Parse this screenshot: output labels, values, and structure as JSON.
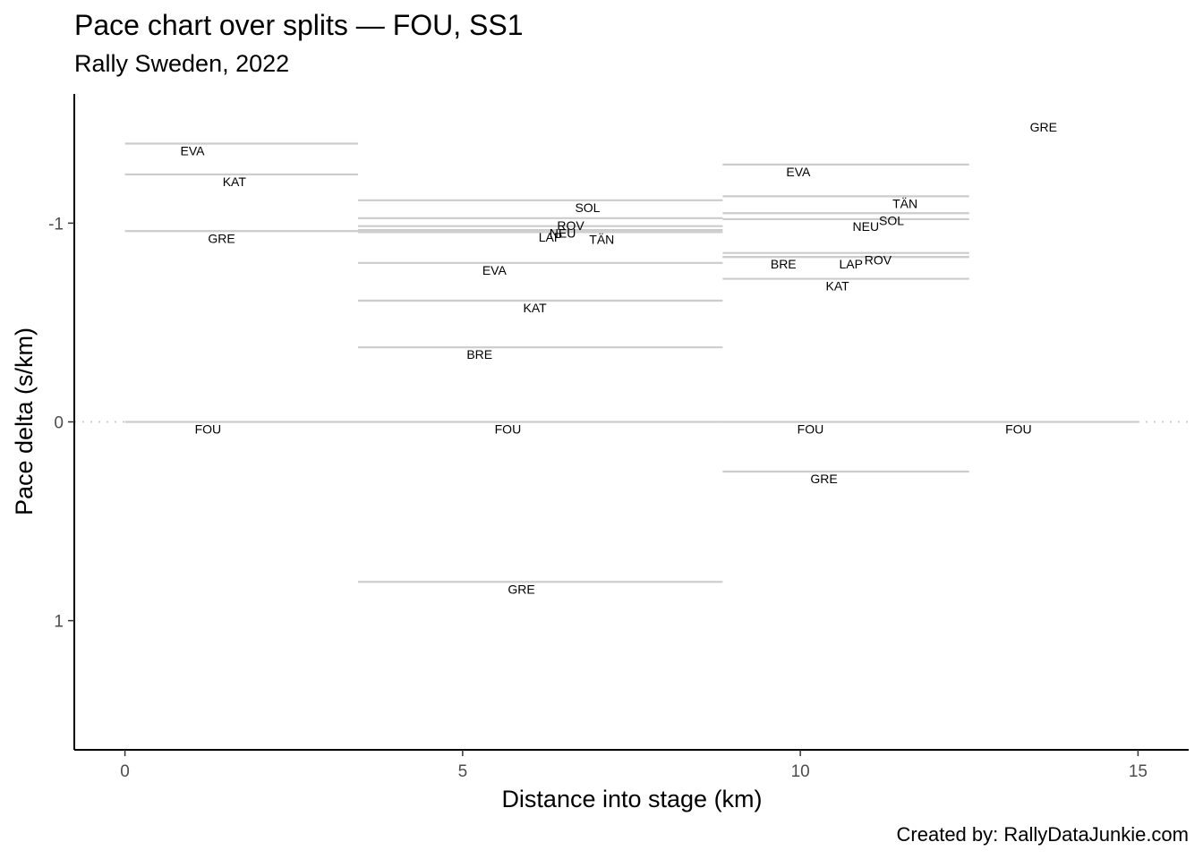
{
  "chart_data": {
    "type": "line",
    "title": "Pace chart over splits — FOU, SS1",
    "subtitle": "Rally Sweden, 2022",
    "caption": "Created by: RallyDataJunkie.com",
    "xlabel": "Distance into stage (km)",
    "ylabel": "Pace delta (s/km)",
    "xlim": [
      -0.75,
      15.75
    ],
    "ylim": [
      1.65,
      -1.65
    ],
    "y_reversed": true,
    "x_ticks": [
      0,
      5,
      10,
      15
    ],
    "y_ticks": [
      -1,
      0,
      1
    ],
    "y_tick_labels": [
      "-1",
      "0",
      "1"
    ],
    "reference_line": 0,
    "grid": false,
    "line_color": "#cccccc",
    "splits": [
      {
        "start": 0,
        "end": 3.45
      },
      {
        "start": 3.45,
        "end": 8.85
      },
      {
        "start": 8.85,
        "end": 12.5
      },
      {
        "start": 12.5,
        "end": 15.0
      }
    ],
    "segments": [
      {
        "driver": "EVA",
        "split": 0,
        "pace": -1.4,
        "label_x": 1.0
      },
      {
        "driver": "KAT",
        "split": 0,
        "pace": -1.245,
        "label_x": 1.62
      },
      {
        "driver": "GRE",
        "split": 0,
        "pace": -0.96,
        "label_x": 1.43
      },
      {
        "driver": "FOU",
        "split": 0,
        "pace": 0.0,
        "label_x": 1.23
      },
      {
        "driver": "SOL",
        "split": 1,
        "pace": -1.115,
        "label_x": 6.85
      },
      {
        "driver": "ROV",
        "split": 1,
        "pace": -1.025,
        "label_x": 6.6
      },
      {
        "driver": "NEU",
        "split": 1,
        "pace": -0.985,
        "label_x": 6.48
      },
      {
        "driver": "LAP",
        "split": 1,
        "pace": -0.965,
        "label_x": 6.3
      },
      {
        "driver": "TÄN",
        "split": 1,
        "pace": -0.955,
        "label_x": 7.06
      },
      {
        "driver": "EVA",
        "split": 1,
        "pace": -0.8,
        "label_x": 5.47
      },
      {
        "driver": "KAT",
        "split": 1,
        "pace": -0.61,
        "label_x": 6.07
      },
      {
        "driver": "BRE",
        "split": 1,
        "pace": -0.375,
        "label_x": 5.25
      },
      {
        "driver": "FOU",
        "split": 1,
        "pace": 0.0,
        "label_x": 5.67
      },
      {
        "driver": "GRE",
        "split": 1,
        "pace": 0.805,
        "label_x": 5.87
      },
      {
        "driver": "EVA",
        "split": 2,
        "pace": -1.295,
        "label_x": 9.97
      },
      {
        "driver": "TÄN",
        "split": 2,
        "pace": -1.135,
        "label_x": 11.55
      },
      {
        "driver": "SOL",
        "split": 2,
        "pace": -1.05,
        "label_x": 11.35
      },
      {
        "driver": "NEU",
        "split": 2,
        "pace": -1.02,
        "label_x": 10.97
      },
      {
        "driver": "ROV",
        "split": 2,
        "pace": -0.85,
        "label_x": 11.15
      },
      {
        "driver": "BRE",
        "split": 2,
        "pace": -0.83,
        "label_x": 9.75
      },
      {
        "driver": "LAP",
        "split": 2,
        "pace": -0.83,
        "label_x": 10.75
      },
      {
        "driver": "KAT",
        "split": 2,
        "pace": -0.72,
        "label_x": 10.55
      },
      {
        "driver": "FOU",
        "split": 2,
        "pace": 0.0,
        "label_x": 10.15
      },
      {
        "driver": "GRE",
        "split": 2,
        "pace": 0.25,
        "label_x": 10.35
      },
      {
        "driver": "FOU",
        "split": 3,
        "pace": 0.0,
        "label_x": 13.23
      },
      {
        "driver": "GRE",
        "split": 3,
        "pace": -1.52,
        "label_x": 13.6,
        "no_line": true
      }
    ]
  }
}
